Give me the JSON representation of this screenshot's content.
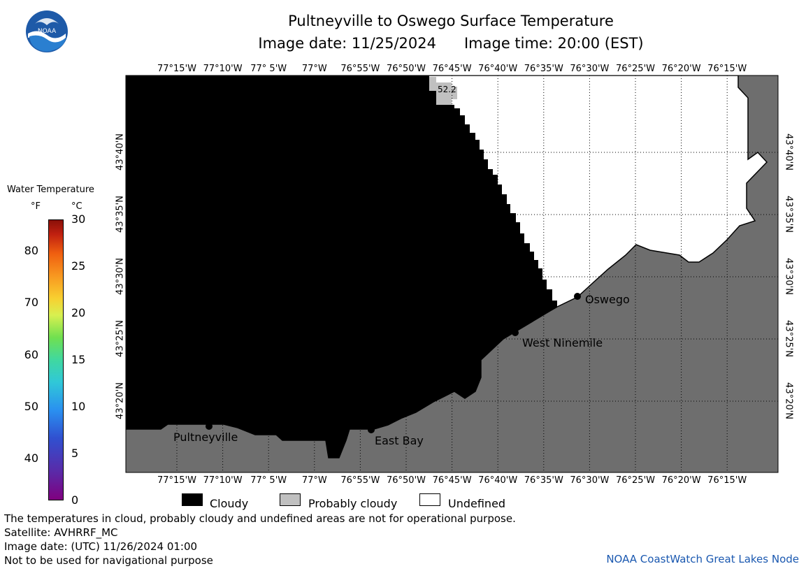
{
  "title": "Pultneyville to Oswego Surface Temperature",
  "image_date_label": "Image date: 11/25/2024",
  "image_time_label": "Image time: 20:00 (EST)",
  "logo_icon": "noaa-logo",
  "longitude_labels": [
    "77°15'W",
    "77°10'W",
    "77° 5'W",
    "77°W",
    "76°55'W",
    "76°50'W",
    "76°45'W",
    "76°40'W",
    "76°35'W",
    "76°30'W",
    "76°25'W",
    "76°20'W",
    "76°15'W"
  ],
  "latitude_labels": [
    "43°40'N",
    "43°35'N",
    "43°30'N",
    "43°25'N",
    "43°20'N"
  ],
  "cities": [
    {
      "name": "Oswego"
    },
    {
      "name": "West Ninemile"
    },
    {
      "name": "Pultneyville"
    },
    {
      "name": "East Bay"
    }
  ],
  "sample_value": "52.2",
  "colorbar": {
    "title": "Water Temperature",
    "unit_f": "°F",
    "unit_c": "°C",
    "f_ticks": [
      "80",
      "70",
      "60",
      "50",
      "40"
    ],
    "c_ticks": [
      "30",
      "25",
      "20",
      "15",
      "10",
      "5",
      "0"
    ]
  },
  "legend": {
    "cloudy": "Cloudy",
    "probably_cloudy": "Probably cloudy",
    "undefined": "Undefined",
    "cloudy_color": "#000000",
    "probably_cloudy_color": "#c0c0c0",
    "undefined_color": "#ffffff",
    "land_color": "#6e6e6e"
  },
  "notes": {
    "disclaimer": "The temperatures in cloud, probably cloudy and undefined areas are not for operational purpose.",
    "satellite": "Satellite: AVHRRF_MC",
    "utc_date": "Image date: (UTC) 11/26/2024  01:00",
    "navigation": "Not to be used for navigational purpose"
  },
  "credit": "NOAA CoastWatch Great Lakes Node"
}
